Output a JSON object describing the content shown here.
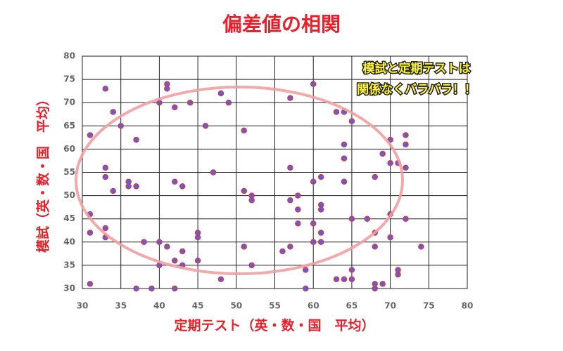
{
  "chart_data": {
    "type": "scatter",
    "title": "偏差値の相関",
    "x_label": "定期テスト（英・数・国　平均）",
    "y_label": "模試（英・数・国　平均）",
    "annotations": [
      "模試と定期テストは",
      "関係なくバラバラ！！"
    ],
    "color": "#5a62d8",
    "edge_color": "#e8303a",
    "xlim": [
      30,
      80
    ],
    "ylim": [
      30,
      80
    ],
    "xticks": [
      30,
      35,
      40,
      45,
      50,
      55,
      60,
      65,
      70,
      75,
      80
    ],
    "yticks": [
      30,
      35,
      40,
      45,
      50,
      55,
      60,
      65,
      70,
      75,
      80
    ],
    "grid": true,
    "x": [
      31,
      31,
      31,
      31,
      33,
      33,
      33,
      33,
      33,
      34,
      34,
      35,
      36,
      36,
      37,
      37,
      37,
      38,
      39,
      40,
      40,
      40,
      41,
      41,
      41,
      42,
      42,
      42,
      42,
      43,
      43,
      43,
      44,
      45,
      45,
      45,
      46,
      47,
      48,
      48,
      49,
      51,
      51,
      51,
      52,
      52,
      52,
      56,
      57,
      57,
      57,
      57,
      58,
      58,
      58,
      59,
      59,
      60,
      60,
      60,
      60,
      61,
      61,
      61,
      61,
      61,
      63,
      63,
      64,
      64,
      64,
      64,
      64,
      65,
      65,
      65,
      65,
      67,
      68,
      68,
      68,
      68,
      68,
      69,
      69,
      70,
      70,
      70,
      70,
      71,
      71,
      71,
      72,
      72,
      72,
      72,
      74
    ],
    "y": [
      31,
      42,
      46,
      63,
      73,
      56,
      54,
      43,
      41,
      68,
      51,
      65,
      53,
      52,
      62,
      52,
      30,
      40,
      30,
      70,
      40,
      35,
      74,
      73,
      39,
      69,
      53,
      36,
      30,
      52,
      38,
      35,
      70,
      42,
      41,
      36,
      65,
      55,
      72,
      32,
      70,
      64,
      51,
      39,
      50,
      49,
      35,
      38,
      71,
      56,
      49,
      39,
      50,
      47,
      44,
      34,
      30,
      74,
      53,
      44,
      40,
      54,
      48,
      47,
      42,
      40,
      68,
      32,
      68,
      61,
      58,
      53,
      32,
      66,
      45,
      34,
      32,
      45,
      54,
      42,
      39,
      31,
      30,
      59,
      31,
      62,
      57,
      46,
      41,
      57,
      34,
      33,
      63,
      61,
      56,
      45,
      39
    ]
  }
}
